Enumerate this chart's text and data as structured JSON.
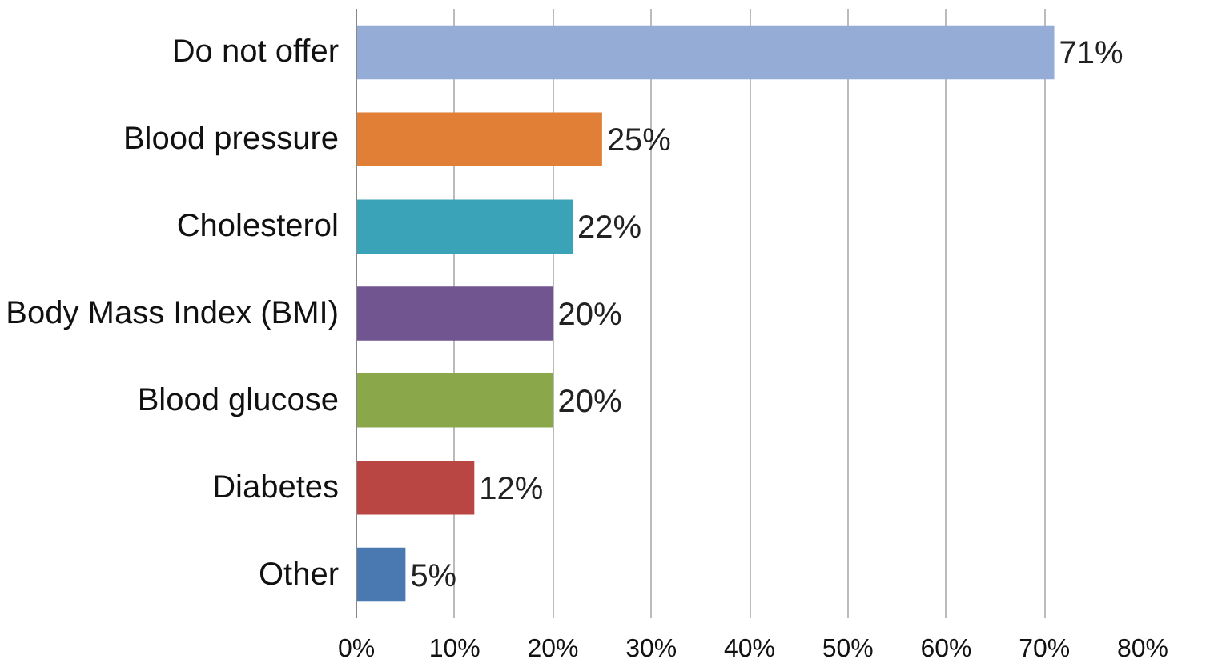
{
  "chart_data": {
    "type": "bar",
    "orientation": "horizontal",
    "categories": [
      "Do not offer",
      "Blood pressure",
      "Cholesterol",
      "Body Mass Index (BMI)",
      "Blood glucose",
      "Diabetes",
      "Other"
    ],
    "values": [
      71,
      25,
      22,
      20,
      20,
      12,
      5
    ],
    "colors": [
      "#95acd6",
      "#e07f35",
      "#3aa3b8",
      "#705591",
      "#8aa84a",
      "#b94642",
      "#4a78b0"
    ],
    "value_labels": [
      "71%",
      "25%",
      "22%",
      "20%",
      "20%",
      "12%",
      "5%"
    ],
    "xlim": [
      0,
      80
    ],
    "xticks": [
      {
        "value": 0,
        "label": "0%"
      },
      {
        "value": 10,
        "label": "10%"
      },
      {
        "value": 20,
        "label": "20%"
      },
      {
        "value": 30,
        "label": "30%"
      },
      {
        "value": 40,
        "label": "40%"
      },
      {
        "value": 50,
        "label": "50%"
      },
      {
        "value": 60,
        "label": "60%"
      },
      {
        "value": 70,
        "label": "70%"
      },
      {
        "value": 80,
        "label": "80%"
      }
    ],
    "grid": "x"
  }
}
